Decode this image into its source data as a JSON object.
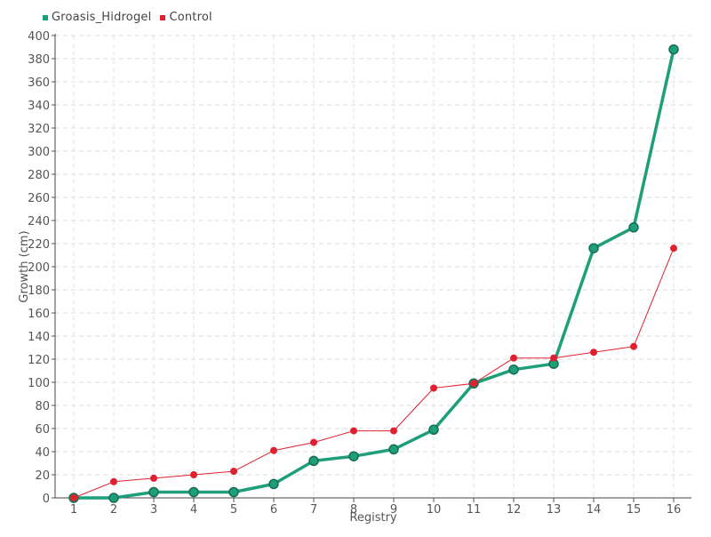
{
  "chart_data": {
    "type": "line",
    "x": [
      1,
      2,
      3,
      4,
      5,
      6,
      7,
      8,
      9,
      10,
      11,
      12,
      13,
      14,
      15,
      16
    ],
    "series": [
      {
        "name": "Groasis_Hidrogel",
        "color": "#1f9e7a",
        "values": [
          0,
          0,
          5,
          5,
          5,
          12,
          32,
          36,
          42,
          59,
          99,
          111,
          116,
          216,
          234,
          388
        ]
      },
      {
        "name": "Control",
        "color": "#e0202f",
        "values": [
          0,
          14,
          17,
          20,
          23,
          41,
          48,
          58,
          58,
          95,
          99,
          121,
          121,
          126,
          131,
          216
        ]
      }
    ],
    "xlabel": "Registry",
    "ylabel": "Growth (cm)",
    "ylim": [
      0,
      400
    ],
    "yticks": [
      0,
      20,
      40,
      60,
      80,
      100,
      120,
      140,
      160,
      180,
      200,
      220,
      240,
      260,
      280,
      300,
      320,
      340,
      360,
      380,
      400
    ],
    "grid": true,
    "legend_position": "top-left"
  }
}
